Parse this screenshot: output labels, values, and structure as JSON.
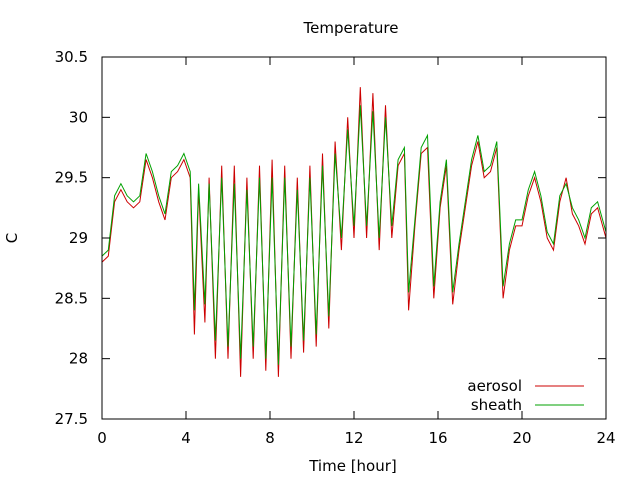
{
  "chart_data": {
    "type": "line",
    "title": "Temperature",
    "xlabel": "Time [hour]",
    "ylabel": "C",
    "xlim": [
      0,
      24
    ],
    "ylim": [
      27.5,
      30.5
    ],
    "xticks": [
      0,
      4,
      8,
      12,
      16,
      20,
      24
    ],
    "yticks": [
      27.5,
      28,
      28.5,
      29,
      29.5,
      30,
      30.5
    ],
    "ytick_labels": [
      "27.5",
      "28",
      "28.5",
      "29",
      "29.5",
      "30",
      "30.5"
    ],
    "grid": false,
    "legend": "bottom-right",
    "series": [
      {
        "name": "aerosol",
        "color": "#cc0000",
        "x": [
          0,
          0.3,
          0.6,
          0.9,
          1.2,
          1.5,
          1.8,
          2.1,
          2.4,
          2.7,
          3.0,
          3.3,
          3.6,
          3.9,
          4.2,
          4.4,
          4.6,
          4.9,
          5.1,
          5.4,
          5.7,
          6.0,
          6.3,
          6.6,
          6.9,
          7.2,
          7.5,
          7.8,
          8.1,
          8.4,
          8.7,
          9.0,
          9.3,
          9.6,
          9.9,
          10.2,
          10.5,
          10.8,
          11.1,
          11.4,
          11.7,
          12.0,
          12.3,
          12.6,
          12.9,
          13.2,
          13.5,
          13.8,
          14.1,
          14.4,
          14.6,
          14.9,
          15.2,
          15.5,
          15.8,
          16.1,
          16.4,
          16.7,
          17.0,
          17.3,
          17.6,
          17.9,
          18.2,
          18.5,
          18.8,
          19.1,
          19.4,
          19.7,
          20.0,
          20.3,
          20.6,
          20.9,
          21.2,
          21.5,
          21.8,
          22.1,
          22.4,
          22.7,
          23.0,
          23.3,
          23.6,
          24.0
        ],
        "y": [
          28.8,
          28.85,
          29.3,
          29.4,
          29.3,
          29.25,
          29.3,
          29.65,
          29.5,
          29.3,
          29.15,
          29.5,
          29.55,
          29.65,
          29.5,
          28.2,
          29.4,
          28.3,
          29.5,
          28.0,
          29.6,
          28.0,
          29.6,
          27.85,
          29.5,
          28.0,
          29.6,
          27.9,
          29.65,
          27.85,
          29.6,
          28.0,
          29.5,
          28.05,
          29.6,
          28.1,
          29.7,
          28.25,
          29.8,
          28.9,
          30.0,
          29.0,
          30.25,
          29.0,
          30.2,
          28.9,
          30.1,
          29.0,
          29.6,
          29.7,
          28.4,
          29.1,
          29.7,
          29.75,
          28.5,
          29.25,
          29.6,
          28.45,
          28.9,
          29.25,
          29.6,
          29.8,
          29.5,
          29.55,
          29.75,
          28.5,
          28.9,
          29.1,
          29.1,
          29.35,
          29.5,
          29.3,
          29.0,
          28.9,
          29.3,
          29.5,
          29.2,
          29.1,
          28.95,
          29.2,
          29.25,
          29.0
        ]
      },
      {
        "name": "sheath",
        "color": "#00a000",
        "x": [
          0,
          0.3,
          0.6,
          0.9,
          1.2,
          1.5,
          1.8,
          2.1,
          2.4,
          2.7,
          3.0,
          3.3,
          3.6,
          3.9,
          4.2,
          4.4,
          4.6,
          4.9,
          5.1,
          5.4,
          5.7,
          6.0,
          6.3,
          6.6,
          6.9,
          7.2,
          7.5,
          7.8,
          8.1,
          8.4,
          8.7,
          9.0,
          9.3,
          9.6,
          9.9,
          10.2,
          10.5,
          10.8,
          11.1,
          11.4,
          11.7,
          12.0,
          12.3,
          12.6,
          12.9,
          13.2,
          13.5,
          13.8,
          14.1,
          14.4,
          14.6,
          14.9,
          15.2,
          15.5,
          15.8,
          16.1,
          16.4,
          16.7,
          17.0,
          17.3,
          17.6,
          17.9,
          18.2,
          18.5,
          18.8,
          19.1,
          19.4,
          19.7,
          20.0,
          20.3,
          20.6,
          20.9,
          21.2,
          21.5,
          21.8,
          22.1,
          22.4,
          22.7,
          23.0,
          23.3,
          23.6,
          24.0
        ],
        "y": [
          28.85,
          28.9,
          29.35,
          29.45,
          29.35,
          29.3,
          29.35,
          29.7,
          29.55,
          29.35,
          29.2,
          29.55,
          29.6,
          29.7,
          29.55,
          28.4,
          29.45,
          28.45,
          29.45,
          28.15,
          29.5,
          28.1,
          29.45,
          28.0,
          29.4,
          28.1,
          29.5,
          28.0,
          29.5,
          27.95,
          29.5,
          28.1,
          29.4,
          28.15,
          29.5,
          28.2,
          29.6,
          28.35,
          29.7,
          29.0,
          29.9,
          29.1,
          30.1,
          29.1,
          30.05,
          29.0,
          30.0,
          29.1,
          29.65,
          29.75,
          28.55,
          29.15,
          29.75,
          29.85,
          28.6,
          29.3,
          29.65,
          28.55,
          28.95,
          29.3,
          29.65,
          29.85,
          29.55,
          29.6,
          29.8,
          28.6,
          28.95,
          29.15,
          29.15,
          29.4,
          29.55,
          29.35,
          29.05,
          28.95,
          29.35,
          29.45,
          29.25,
          29.15,
          29.0,
          29.25,
          29.3,
          29.05
        ]
      }
    ]
  }
}
